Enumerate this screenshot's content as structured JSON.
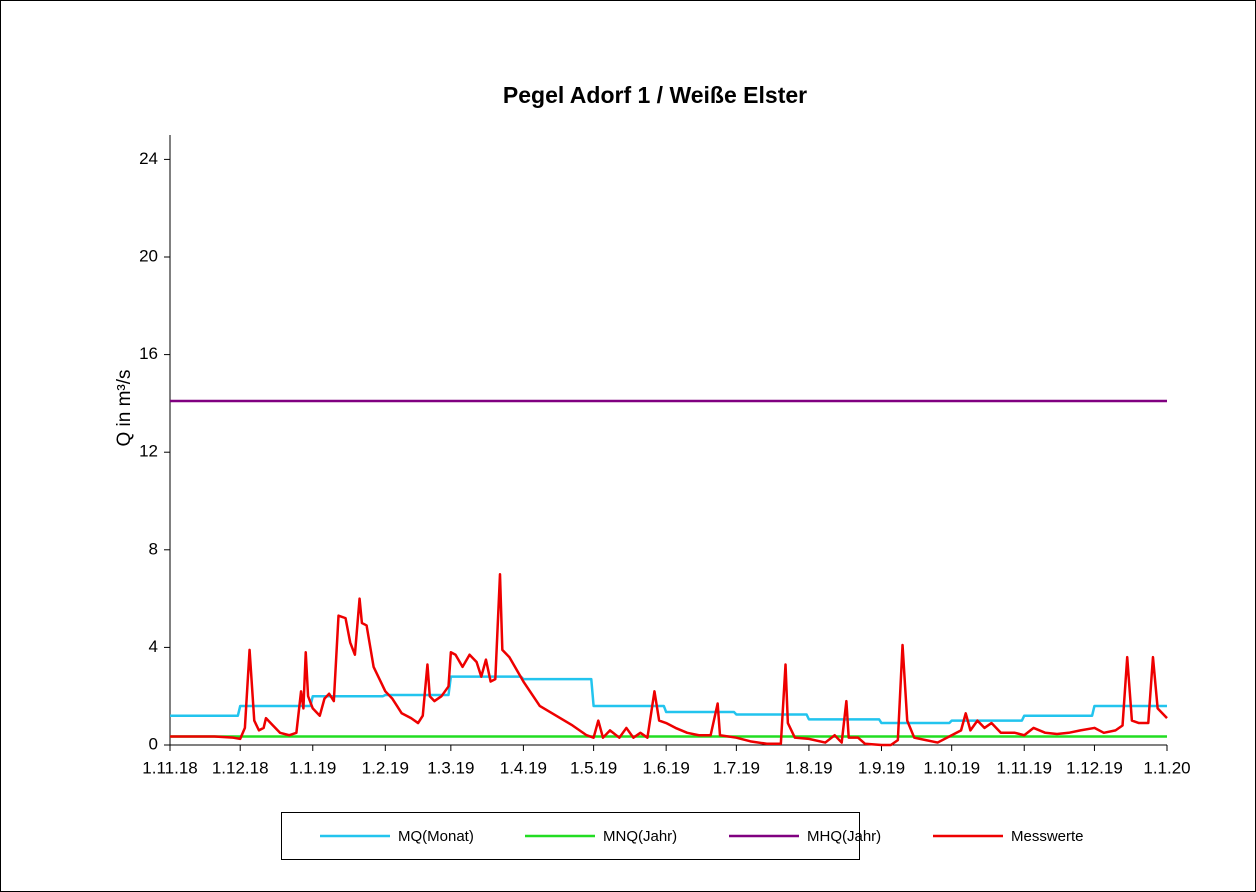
{
  "chart_data": {
    "type": "line",
    "title": "Pegel Adorf 1 / Weiße Elster",
    "y_label": "Q in m³/s",
    "xlim": [
      "2018-11-01",
      "2020-01-01"
    ],
    "xticks": [
      {
        "value": "2018-11-01",
        "label": "1.11.18"
      },
      {
        "value": "2018-12-01",
        "label": "1.12.18"
      },
      {
        "value": "2019-01-01",
        "label": "1.1.19"
      },
      {
        "value": "2019-02-01",
        "label": "1.2.19"
      },
      {
        "value": "2019-03-01",
        "label": "1.3.19"
      },
      {
        "value": "2019-04-01",
        "label": "1.4.19"
      },
      {
        "value": "2019-05-01",
        "label": "1.5.19"
      },
      {
        "value": "2019-06-01",
        "label": "1.6.19"
      },
      {
        "value": "2019-07-01",
        "label": "1.7.19"
      },
      {
        "value": "2019-08-01",
        "label": "1.8.19"
      },
      {
        "value": "2019-09-01",
        "label": "1.9.19"
      },
      {
        "value": "2019-10-01",
        "label": "1.10.19"
      },
      {
        "value": "2019-11-01",
        "label": "1.11.19"
      },
      {
        "value": "2019-12-01",
        "label": "1.12.19"
      },
      {
        "value": "2020-01-01",
        "label": "1.1.20"
      }
    ],
    "ylim": [
      0,
      25
    ],
    "yticks": [
      0,
      4,
      8,
      12,
      16,
      20,
      24
    ],
    "grid": false,
    "legend": "bottom",
    "series": [
      {
        "name": "MQ(Monat)",
        "color": "#22c4ee",
        "x": [
          "2018-11-01",
          "2018-11-30",
          "2018-12-01",
          "2018-12-31",
          "2019-01-01",
          "2019-01-31",
          "2019-02-01",
          "2019-02-28",
          "2019-03-01",
          "2019-03-31",
          "2019-04-01",
          "2019-04-30",
          "2019-05-01",
          "2019-05-31",
          "2019-06-01",
          "2019-06-30",
          "2019-07-01",
          "2019-07-31",
          "2019-08-01",
          "2019-08-31",
          "2019-09-01",
          "2019-09-30",
          "2019-10-01",
          "2019-10-31",
          "2019-11-01",
          "2019-11-30",
          "2019-12-01",
          "2020-01-01"
        ],
        "values": [
          1.2,
          1.2,
          1.6,
          1.6,
          2.0,
          2.0,
          2.05,
          2.05,
          2.8,
          2.8,
          2.7,
          2.7,
          1.6,
          1.6,
          1.35,
          1.35,
          1.25,
          1.25,
          1.05,
          1.05,
          0.9,
          0.9,
          1.0,
          1.0,
          1.2,
          1.2,
          1.6,
          1.6
        ]
      },
      {
        "name": "MNQ(Jahr)",
        "color": "#22dd22",
        "x": [
          "2018-11-01",
          "2020-01-01"
        ],
        "values": [
          0.35,
          0.35
        ]
      },
      {
        "name": "MHQ(Jahr)",
        "color": "#800080",
        "x": [
          "2018-11-01",
          "2020-01-01"
        ],
        "values": [
          14.1,
          14.1
        ]
      },
      {
        "name": "Messwerte",
        "color": "#ee0000",
        "x": [
          "2018-11-01",
          "2018-11-10",
          "2018-11-20",
          "2018-11-28",
          "2018-12-01",
          "2018-12-03",
          "2018-12-05",
          "2018-12-07",
          "2018-12-09",
          "2018-12-11",
          "2018-12-12",
          "2018-12-15",
          "2018-12-18",
          "2018-12-22",
          "2018-12-25",
          "2018-12-27",
          "2018-12-28",
          "2018-12-29",
          "2018-12-30",
          "2019-01-01",
          "2019-01-04",
          "2019-01-06",
          "2019-01-08",
          "2019-01-10",
          "2019-01-12",
          "2019-01-15",
          "2019-01-17",
          "2019-01-19",
          "2019-01-21",
          "2019-01-22",
          "2019-01-24",
          "2019-01-27",
          "2019-02-01",
          "2019-02-04",
          "2019-02-06",
          "2019-02-08",
          "2019-02-12",
          "2019-02-15",
          "2019-02-17",
          "2019-02-19",
          "2019-02-20",
          "2019-02-22",
          "2019-02-25",
          "2019-02-28",
          "2019-03-01",
          "2019-03-03",
          "2019-03-06",
          "2019-03-09",
          "2019-03-12",
          "2019-03-14",
          "2019-03-16",
          "2019-03-18",
          "2019-03-20",
          "2019-03-22",
          "2019-03-23",
          "2019-03-26",
          "2019-04-01",
          "2019-04-08",
          "2019-04-15",
          "2019-04-22",
          "2019-04-28",
          "2019-05-01",
          "2019-05-03",
          "2019-05-05",
          "2019-05-08",
          "2019-05-12",
          "2019-05-15",
          "2019-05-18",
          "2019-05-21",
          "2019-05-24",
          "2019-05-27",
          "2019-05-29",
          "2019-06-01",
          "2019-06-05",
          "2019-06-10",
          "2019-06-15",
          "2019-06-20",
          "2019-06-23",
          "2019-06-24",
          "2019-07-01",
          "2019-07-07",
          "2019-07-14",
          "2019-07-20",
          "2019-07-22",
          "2019-07-23",
          "2019-07-26",
          "2019-08-01",
          "2019-08-08",
          "2019-08-12",
          "2019-08-15",
          "2019-08-17",
          "2019-08-18",
          "2019-08-22",
          "2019-08-25",
          "2019-09-01",
          "2019-09-05",
          "2019-09-08",
          "2019-09-10",
          "2019-09-12",
          "2019-09-15",
          "2019-09-20",
          "2019-09-25",
          "2019-10-01",
          "2019-10-05",
          "2019-10-07",
          "2019-10-09",
          "2019-10-12",
          "2019-10-15",
          "2019-10-18",
          "2019-10-22",
          "2019-10-28",
          "2019-11-01",
          "2019-11-05",
          "2019-11-10",
          "2019-11-15",
          "2019-11-20",
          "2019-11-25",
          "2019-12-01",
          "2019-12-05",
          "2019-12-10",
          "2019-12-13",
          "2019-12-15",
          "2019-12-17",
          "2019-12-20",
          "2019-12-24",
          "2019-12-26",
          "2019-12-28",
          "2020-01-01"
        ],
        "values": [
          0.35,
          0.35,
          0.35,
          0.3,
          0.25,
          0.7,
          3.9,
          1.0,
          0.6,
          0.7,
          1.1,
          0.8,
          0.5,
          0.4,
          0.5,
          2.2,
          1.5,
          3.8,
          2.0,
          1.5,
          1.2,
          1.9,
          2.1,
          1.8,
          5.3,
          5.2,
          4.2,
          3.7,
          6.0,
          5.0,
          4.9,
          3.2,
          2.2,
          1.9,
          1.6,
          1.3,
          1.1,
          0.9,
          1.2,
          3.3,
          2.0,
          1.8,
          2.0,
          2.4,
          3.8,
          3.7,
          3.2,
          3.7,
          3.4,
          2.8,
          3.5,
          2.6,
          2.7,
          7.0,
          3.9,
          3.6,
          2.6,
          1.6,
          1.2,
          0.8,
          0.4,
          0.3,
          1.0,
          0.3,
          0.6,
          0.3,
          0.7,
          0.3,
          0.5,
          0.3,
          2.2,
          1.0,
          0.9,
          0.7,
          0.5,
          0.4,
          0.4,
          1.7,
          0.4,
          0.3,
          0.15,
          0.05,
          0.05,
          3.3,
          0.9,
          0.3,
          0.25,
          0.1,
          0.4,
          0.1,
          1.8,
          0.3,
          0.3,
          0.05,
          0.0,
          0.0,
          0.2,
          4.1,
          1.0,
          0.3,
          0.2,
          0.1,
          0.4,
          0.6,
          1.3,
          0.6,
          1.0,
          0.7,
          0.9,
          0.5,
          0.5,
          0.4,
          0.7,
          0.5,
          0.45,
          0.5,
          0.6,
          0.7,
          0.5,
          0.6,
          0.8,
          3.6,
          1.0,
          0.9,
          0.9,
          3.6,
          1.5,
          1.1
        ]
      }
    ]
  }
}
